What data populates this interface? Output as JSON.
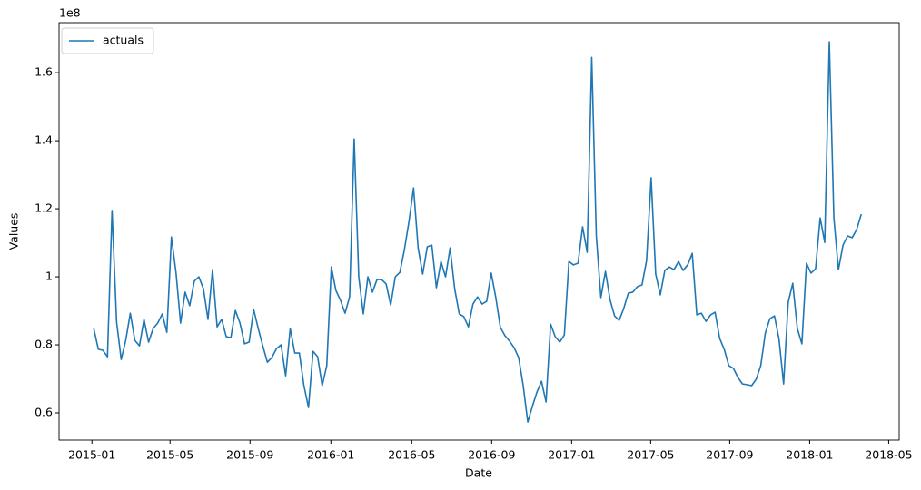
{
  "chart_data": {
    "type": "line",
    "x_label": "Date",
    "y_label": "Values",
    "offset_text": "1e8",
    "series": [
      {
        "name": "actuals",
        "color": "#1f77b4",
        "values": [
          0.848,
          0.787,
          0.784,
          0.765,
          1.195,
          0.867,
          0.757,
          0.813,
          0.893,
          0.813,
          0.797,
          0.875,
          0.808,
          0.848,
          0.864,
          0.891,
          0.837,
          1.117,
          1.013,
          0.864,
          0.955,
          0.915,
          0.987,
          1.0,
          0.965,
          0.875,
          1.021,
          0.853,
          0.875,
          0.824,
          0.821,
          0.901,
          0.864,
          0.803,
          0.808,
          0.904,
          0.848,
          0.797,
          0.749,
          0.763,
          0.789,
          0.8,
          0.709,
          0.848,
          0.776,
          0.776,
          0.68,
          0.616,
          0.781,
          0.765,
          0.68,
          0.739,
          1.029,
          0.96,
          0.931,
          0.893,
          0.941,
          1.405,
          1.0,
          0.891,
          1.0,
          0.955,
          0.992,
          0.992,
          0.979,
          0.917,
          1.0,
          1.013,
          1.08,
          1.163,
          1.261,
          1.085,
          1.008,
          1.088,
          1.093,
          0.968,
          1.045,
          1.0,
          1.085,
          0.965,
          0.891,
          0.883,
          0.853,
          0.92,
          0.941,
          0.92,
          0.928,
          1.011,
          0.939,
          0.851,
          0.827,
          0.811,
          0.792,
          0.763,
          0.68,
          0.573,
          0.619,
          0.661,
          0.693,
          0.632,
          0.861,
          0.824,
          0.808,
          0.829,
          1.045,
          1.035,
          1.04,
          1.147,
          1.072,
          1.645,
          1.12,
          0.939,
          1.016,
          0.933,
          0.885,
          0.872,
          0.907,
          0.952,
          0.955,
          0.971,
          0.976,
          1.048,
          1.291,
          1.008,
          0.947,
          1.019,
          1.029,
          1.021,
          1.045,
          1.019,
          1.035,
          1.069,
          0.888,
          0.893,
          0.869,
          0.888,
          0.896,
          0.819,
          0.787,
          0.739,
          0.731,
          0.704,
          0.685,
          0.683,
          0.68,
          0.699,
          0.739,
          0.835,
          0.877,
          0.885,
          0.816,
          0.685,
          0.925,
          0.981,
          0.848,
          0.803,
          1.04,
          1.011,
          1.024,
          1.173,
          1.101,
          1.691,
          1.173,
          1.021,
          1.093,
          1.12,
          1.115,
          1.139,
          1.184
        ]
      }
    ],
    "xlim": [
      -7.6,
      176.3
    ],
    "xticks": [
      {
        "value": -0.4,
        "label": "2015-01"
      },
      {
        "value": 16.7,
        "label": "2015-05"
      },
      {
        "value": 34.2,
        "label": "2015-09"
      },
      {
        "value": 51.9,
        "label": "2016-01"
      },
      {
        "value": 69.6,
        "label": "2016-05"
      },
      {
        "value": 87.1,
        "label": "2016-09"
      },
      {
        "value": 104.6,
        "label": "2017-01"
      },
      {
        "value": 121.9,
        "label": "2017-05"
      },
      {
        "value": 139.2,
        "label": "2017-09"
      },
      {
        "value": 156.7,
        "label": "2018-01"
      },
      {
        "value": 174.0,
        "label": "2018-05"
      }
    ],
    "ylim": [
      0.52,
      1.747
    ],
    "yticks": [
      0.6,
      0.8,
      1.0,
      1.2,
      1.4,
      1.6
    ],
    "grid": false,
    "legend": "upper left"
  }
}
